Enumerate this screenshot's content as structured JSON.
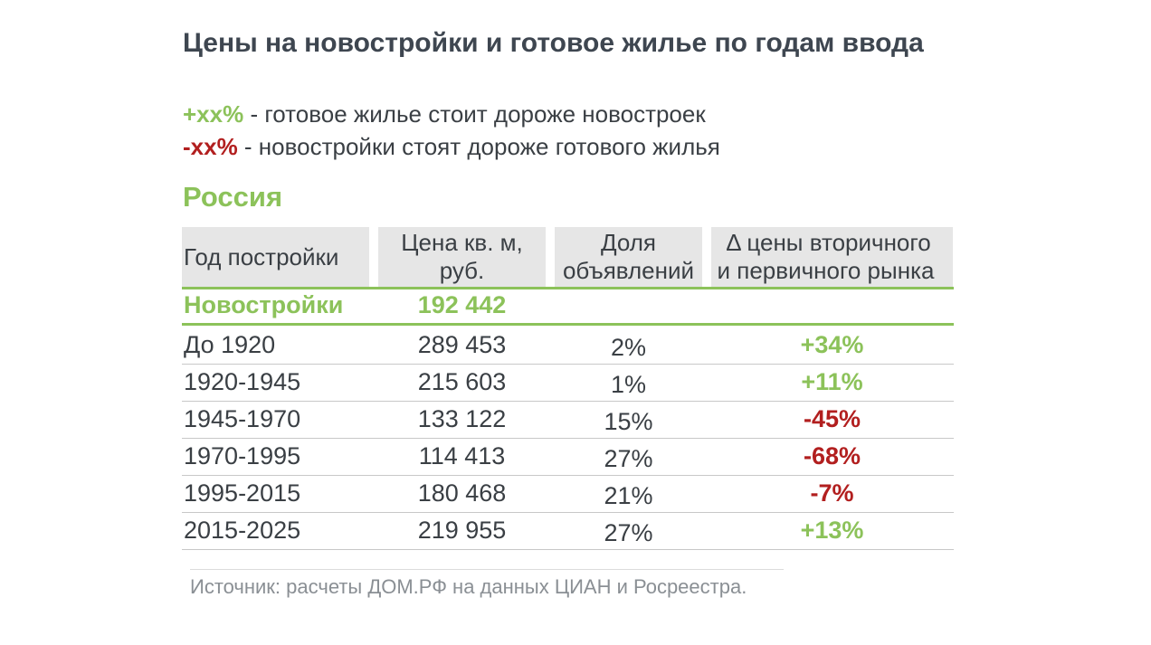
{
  "title": "Цены на новостройки и готовое жилье по годам ввода",
  "legend": {
    "positive_mark": "+xx%",
    "positive_text": " - готовое жилье стоит дороже новостроек",
    "negative_mark": "-xx%",
    "negative_text": " - новостройки стоят дороже готового жилья"
  },
  "region": "Россия",
  "table": {
    "headers": {
      "year": "Год постройки",
      "price_line1": "Цена кв. м,",
      "price_line2": "руб.",
      "share_line1": "Доля",
      "share_line2": "объявлений",
      "delta_line1": "Δ цены вторичного",
      "delta_line2": "и первичного рынка"
    },
    "new_buildings": {
      "label": "Новостройки",
      "price": "192 442"
    },
    "rows": [
      {
        "year": "До 1920",
        "price": "289 453",
        "share": "2%",
        "delta": "+34%"
      },
      {
        "year": "1920-1945",
        "price": "215 603",
        "share": "1%",
        "delta": "+11%"
      },
      {
        "year": "1945-1970",
        "price": "133 122",
        "share": "15%",
        "delta": "-45%"
      },
      {
        "year": "1970-1995",
        "price": "114 413",
        "share": "27%",
        "delta": "-68%"
      },
      {
        "year": "1995-2015",
        "price": "180 468",
        "share": "21%",
        "delta": "-7%"
      },
      {
        "year": "2015-2025",
        "price": "219 955",
        "share": "27%",
        "delta": "+13%"
      }
    ]
  },
  "source": "Источник: расчеты ДОМ.РФ на данных ЦИАН и Росреестра.",
  "colors": {
    "positive": "#8cc25a",
    "negative": "#b21f1f",
    "header_bg": "#e6e6e6",
    "title": "#3e4650"
  }
}
